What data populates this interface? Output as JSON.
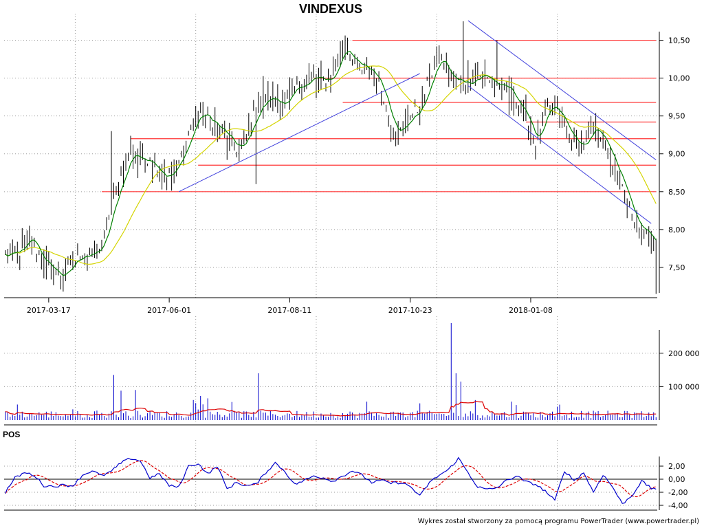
{
  "title": "VINDEXUS",
  "footer": "Wykres został stworzony za pomocą programu PowerTrader (www.powertrader.pl)",
  "colors": {
    "price_bar": "#000000",
    "ma_short": "#008000",
    "ma_long": "#d4d400",
    "trendline": "#4444dd",
    "support": "#ff3333",
    "volume_bar": "#0000cc",
    "volume_ma": "#dd0000",
    "osc": "#0000cc",
    "osc_signal": "#dd0000",
    "grid": "#9a9a9a"
  },
  "chart_data": [
    {
      "type": "ohlc",
      "name": "price",
      "title": "VINDEXUS",
      "x_ticks": [
        "2017-03-17",
        "2017-06-01",
        "2017-08-11",
        "2017-10-23",
        "2018-01-08"
      ],
      "y_ticks": [
        "10,50",
        "10,00",
        "9,50",
        "9,00",
        "8,50",
        "8,00",
        "7,50"
      ],
      "ylim": [
        7.1,
        10.85
      ],
      "grid": true,
      "close_anchors": [
        [
          0,
          7.65
        ],
        [
          6,
          7.7
        ],
        [
          10,
          7.9
        ],
        [
          14,
          7.65
        ],
        [
          20,
          7.42
        ],
        [
          24,
          7.4
        ],
        [
          28,
          7.55
        ],
        [
          32,
          7.7
        ],
        [
          36,
          7.65
        ],
        [
          40,
          7.8
        ],
        [
          44,
          8.3
        ],
        [
          48,
          8.7
        ],
        [
          52,
          9.05
        ],
        [
          56,
          8.9
        ],
        [
          60,
          8.95
        ],
        [
          64,
          8.75
        ],
        [
          68,
          8.7
        ],
        [
          72,
          8.9
        ],
        [
          76,
          9.25
        ],
        [
          80,
          9.55
        ],
        [
          84,
          9.45
        ],
        [
          88,
          9.35
        ],
        [
          92,
          9.2
        ],
        [
          96,
          9.05
        ],
        [
          100,
          9.2
        ],
        [
          104,
          9.6
        ],
        [
          108,
          9.72
        ],
        [
          112,
          9.72
        ],
        [
          116,
          9.65
        ],
        [
          120,
          9.85
        ],
        [
          124,
          9.95
        ],
        [
          128,
          10.0
        ],
        [
          132,
          9.95
        ],
        [
          136,
          10.05
        ],
        [
          140,
          10.45
        ],
        [
          144,
          10.25
        ],
        [
          148,
          10.1
        ],
        [
          152,
          10.1
        ],
        [
          156,
          9.85
        ],
        [
          160,
          9.4
        ],
        [
          164,
          9.3
        ],
        [
          168,
          9.5
        ],
        [
          172,
          9.6
        ],
        [
          176,
          10.0
        ],
        [
          180,
          10.3
        ],
        [
          184,
          10.0
        ],
        [
          188,
          9.95
        ],
        [
          192,
          9.95
        ],
        [
          196,
          10.05
        ],
        [
          200,
          10.0
        ],
        [
          204,
          9.9
        ],
        [
          208,
          9.85
        ],
        [
          212,
          9.7
        ],
        [
          216,
          9.45
        ],
        [
          220,
          9.15
        ],
        [
          224,
          9.55
        ],
        [
          228,
          9.6
        ],
        [
          232,
          9.35
        ],
        [
          236,
          9.15
        ],
        [
          240,
          9.1
        ],
        [
          244,
          9.35
        ],
        [
          248,
          9.2
        ],
        [
          252,
          8.85
        ],
        [
          256,
          8.55
        ],
        [
          260,
          8.15
        ],
        [
          264,
          8.05
        ],
        [
          268,
          7.9
        ],
        [
          270,
          7.75
        ]
      ],
      "series": [
        {
          "name": "",
          "role": "short-ma",
          "period": 5
        },
        {
          "name": "",
          "role": "long-ma",
          "period": 22
        }
      ],
      "support_lines": [
        {
          "value": 10.5,
          "from": 144,
          "to": 270
        },
        {
          "value": 10.0,
          "from": 128,
          "to": 270
        },
        {
          "value": 9.68,
          "from": 140,
          "to": 270
        },
        {
          "value": 9.42,
          "from": 216,
          "to": 270
        },
        {
          "value": 9.2,
          "from": 52,
          "to": 270
        },
        {
          "value": 8.85,
          "from": 80,
          "to": 270
        },
        {
          "value": 8.5,
          "from": 40,
          "to": 270
        }
      ],
      "trend_lines": [
        {
          "from": [
            72,
            8.5
          ],
          "to": [
            172,
            10.06
          ]
        },
        {
          "from": [
            192,
            10.76
          ],
          "to": [
            270,
            8.92
          ]
        },
        {
          "from": [
            192,
            9.9
          ],
          "to": [
            268,
            8.08
          ]
        }
      ]
    },
    {
      "type": "bar",
      "name": "volume",
      "y_ticks": [
        "200 000",
        "100 000"
      ],
      "ylim": [
        0,
        290000
      ],
      "grid": true,
      "series": [
        {
          "name": "",
          "role": "volume-ma",
          "period": 14
        }
      ],
      "spikes": [
        [
          45,
          135000
        ],
        [
          48,
          88000
        ],
        [
          54,
          90000
        ],
        [
          78,
          60000
        ],
        [
          81,
          72000
        ],
        [
          84,
          65000
        ],
        [
          105,
          140000
        ],
        [
          150,
          55000
        ],
        [
          172,
          50000
        ],
        [
          185,
          290000
        ],
        [
          187,
          140000
        ],
        [
          189,
          115000
        ],
        [
          195,
          60000
        ],
        [
          210,
          55000
        ],
        [
          212,
          45000
        ]
      ]
    },
    {
      "type": "line",
      "name": "POS",
      "title": "POS",
      "y_ticks": [
        "2,00",
        "0,00",
        "-2,00",
        "-4,00"
      ],
      "ylim": [
        -4.8,
        3.6
      ],
      "grid": true,
      "anchors": [
        [
          0,
          -2.0
        ],
        [
          4,
          0.2
        ],
        [
          8,
          1.0
        ],
        [
          12,
          0.6
        ],
        [
          16,
          -1.0
        ],
        [
          20,
          -1.1
        ],
        [
          24,
          -0.9
        ],
        [
          28,
          -1.0
        ],
        [
          32,
          0.6
        ],
        [
          36,
          1.3
        ],
        [
          40,
          0.5
        ],
        [
          44,
          1.2
        ],
        [
          48,
          2.5
        ],
        [
          52,
          3.2
        ],
        [
          56,
          2.8
        ],
        [
          60,
          0.2
        ],
        [
          64,
          0.8
        ],
        [
          68,
          -1.0
        ],
        [
          72,
          -1.2
        ],
        [
          76,
          2.0
        ],
        [
          80,
          2.4
        ],
        [
          84,
          0.8
        ],
        [
          88,
          2.0
        ],
        [
          92,
          -1.5
        ],
        [
          96,
          -0.5
        ],
        [
          100,
          -1.0
        ],
        [
          104,
          -0.8
        ],
        [
          108,
          1.0
        ],
        [
          112,
          2.5
        ],
        [
          116,
          1.2
        ],
        [
          120,
          -0.8
        ],
        [
          124,
          -0.2
        ],
        [
          128,
          0.5
        ],
        [
          132,
          0.2
        ],
        [
          136,
          -0.3
        ],
        [
          140,
          0.5
        ],
        [
          144,
          1.3
        ],
        [
          148,
          0.6
        ],
        [
          152,
          -0.5
        ],
        [
          156,
          -0.2
        ],
        [
          160,
          -0.6
        ],
        [
          164,
          -0.5
        ],
        [
          168,
          -1.1
        ],
        [
          172,
          -2.6
        ],
        [
          176,
          -0.5
        ],
        [
          180,
          0.6
        ],
        [
          184,
          1.5
        ],
        [
          188,
          3.2
        ],
        [
          192,
          1.0
        ],
        [
          196,
          -1.2
        ],
        [
          200,
          -1.6
        ],
        [
          204,
          -1.3
        ],
        [
          208,
          -0.2
        ],
        [
          212,
          0.5
        ],
        [
          216,
          -0.4
        ],
        [
          220,
          -0.8
        ],
        [
          224,
          -1.8
        ],
        [
          228,
          -3.3
        ],
        [
          232,
          1.3
        ],
        [
          236,
          -0.2
        ],
        [
          240,
          1.0
        ],
        [
          244,
          -2.0
        ],
        [
          248,
          0.7
        ],
        [
          252,
          -1.2
        ],
        [
          256,
          -3.8
        ],
        [
          260,
          -2.5
        ],
        [
          264,
          -0.3
        ],
        [
          268,
          -1.4
        ]
      ],
      "series": [
        {
          "name": "",
          "role": "signal",
          "period": 10
        }
      ]
    }
  ]
}
